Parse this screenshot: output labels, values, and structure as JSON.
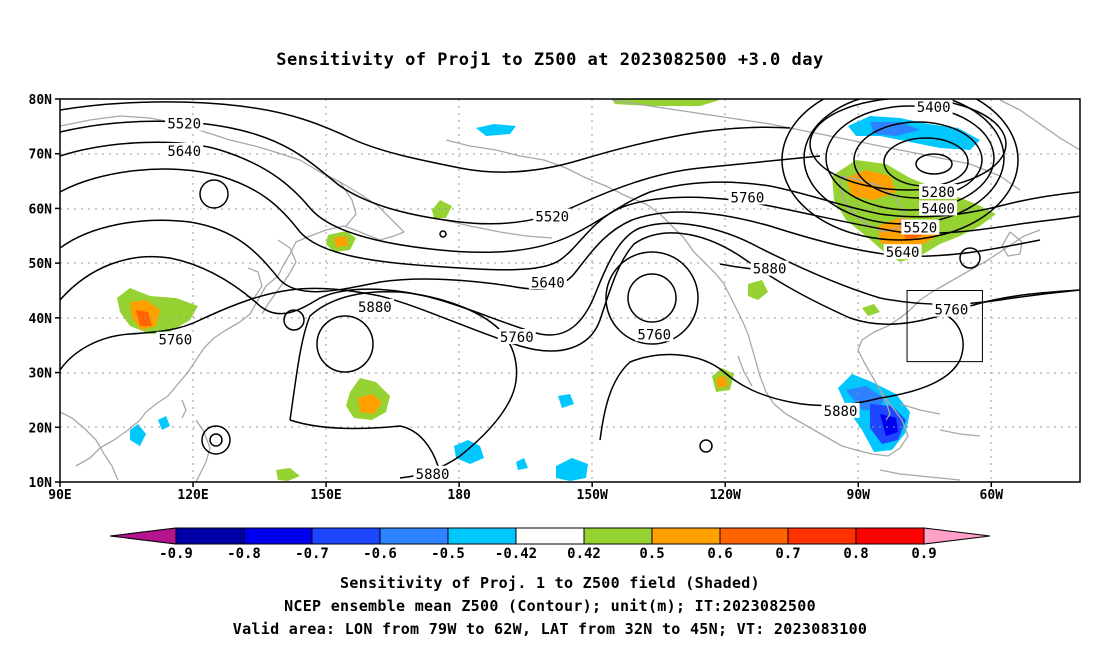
{
  "title": "Sensitivity of Proj1 to Z500 at 2023082500 +3.0 day",
  "map": {
    "lat_labels": [
      "80N",
      "70N",
      "60N",
      "50N",
      "40N",
      "30N",
      "20N",
      "10N"
    ],
    "lon_labels": [
      "90E",
      "120E",
      "150E",
      "180",
      "150W",
      "120W",
      "90W",
      "60W"
    ],
    "lon_range": [
      90,
      320
    ],
    "lat_range": [
      10,
      80
    ],
    "contours": [
      {
        "value": "5520",
        "lon": 118,
        "lat": 75.5
      },
      {
        "value": "5640",
        "lon": 118,
        "lat": 70.5
      },
      {
        "value": "5520",
        "lon": 201,
        "lat": 58.5
      },
      {
        "value": "5640",
        "lon": 200,
        "lat": 46.5
      },
      {
        "value": "5880",
        "lon": 161,
        "lat": 42
      },
      {
        "value": "5760",
        "lon": 116,
        "lat": 36
      },
      {
        "value": "5760",
        "lon": 193,
        "lat": 36.5
      },
      {
        "value": "5760",
        "lon": 224,
        "lat": 37
      },
      {
        "value": "5760",
        "lon": 245,
        "lat": 62
      },
      {
        "value": "5880",
        "lon": 250,
        "lat": 49
      },
      {
        "value": "5880",
        "lon": 174,
        "lat": 11.5
      },
      {
        "value": "5880",
        "lon": 266,
        "lat": 23
      },
      {
        "value": "5400",
        "lon": 287,
        "lat": 78.5
      },
      {
        "value": "5280",
        "lon": 288,
        "lat": 63
      },
      {
        "value": "5400",
        "lon": 288,
        "lat": 60
      },
      {
        "value": "5520",
        "lon": 284,
        "lat": 56.5
      },
      {
        "value": "5640",
        "lon": 280,
        "lat": 52
      },
      {
        "value": "5760",
        "lon": 291,
        "lat": 41.5
      }
    ],
    "valid_box": {
      "lon_min": 281,
      "lon_max": 298,
      "lat_min": 32,
      "lat_max": 45
    },
    "colors": {
      "frame": "#000000",
      "coast": "#a8a8a8",
      "contour": "#000000",
      "grid": "#9a9a9a"
    }
  },
  "colorbar": {
    "levels": [
      "-0.9",
      "-0.8",
      "-0.7",
      "-0.6",
      "-0.5",
      "-0.42",
      "0.42",
      "0.5",
      "0.6",
      "0.7",
      "0.8",
      "0.9"
    ],
    "colors": [
      "#b4148c",
      "#0000a8",
      "#0000f0",
      "#1e46ff",
      "#2d82ff",
      "#00c8ff",
      "#ffffff",
      "#96d232",
      "#ffa000",
      "#ff6400",
      "#ff3200",
      "#ff0000",
      "#ffa0c8"
    ]
  },
  "captions": {
    "line1": "Sensitivity of Proj. 1 to Z500 field (Shaded)",
    "line2": "NCEP ensemble mean Z500 (Contour); unit(m); IT:2023082500",
    "line3": "Valid area: LON from 79W to 62W, LAT from 32N to 45N; VT: 2023083100"
  }
}
